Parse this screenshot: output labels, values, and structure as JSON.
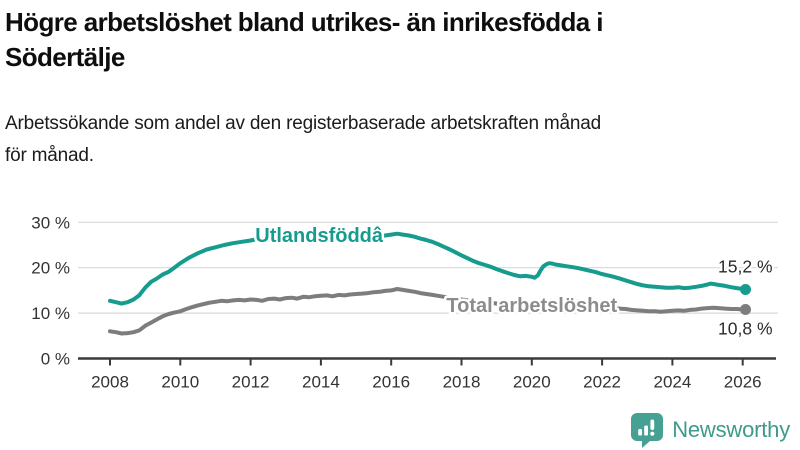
{
  "title": "Högre arbetslöshet bland utrikes- än inrikesfödda i Södertälje",
  "title_lines": [
    "Högre arbetslöshet bland utrikes- än inrikesfödda i",
    "Södertälje"
  ],
  "subtitle": "Arbetssökande som andel av den registerbaserade arbetskraften månad för månad.",
  "subtitle_lines": [
    "Arbetssökande som andel av den registerbaserade arbetskraften månad",
    "för månad."
  ],
  "colors": {
    "foreign_born_line": "#169c8e",
    "total_line": "#7d7d7d",
    "total_label_text": "#8c8c8c",
    "grid": "#d9d9d9",
    "axis": "#3a3a3a",
    "tick_text": "#333333",
    "end_label_text": "#2b2b2b",
    "logo_fill": "#47a094",
    "logo_text": "#3d9a8c",
    "background": "#ffffff"
  },
  "footer": {
    "brand": "Newsworthy"
  },
  "chart_data": {
    "type": "line",
    "grid": "horizontal",
    "legend_position": "inline-labels",
    "x_axis": {
      "tick_years": [
        2008,
        2010,
        2012,
        2014,
        2016,
        2018,
        2020,
        2022,
        2024,
        2026
      ],
      "range": [
        2007.1,
        2026.9
      ]
    },
    "y_axis": {
      "ticks": [
        0,
        10,
        20,
        30
      ],
      "tick_labels": [
        "0 %",
        "10 %",
        "20 %",
        "30 %"
      ],
      "range": [
        0,
        31
      ],
      "unit": "%"
    },
    "series": [
      {
        "name": "Utlandsföddâ",
        "color": "#169c8e",
        "end_value": 15.2,
        "end_label": "15,2 %",
        "end_label_side": "above",
        "label_anchor": {
          "year": 2013.95,
          "value": 27.2
        },
        "points": [
          [
            2008.0,
            12.7
          ],
          [
            2008.17,
            12.4
          ],
          [
            2008.33,
            12.1
          ],
          [
            2008.5,
            12.4
          ],
          [
            2008.67,
            13.0
          ],
          [
            2008.83,
            13.9
          ],
          [
            2009.0,
            15.6
          ],
          [
            2009.17,
            16.9
          ],
          [
            2009.33,
            17.6
          ],
          [
            2009.5,
            18.5
          ],
          [
            2009.67,
            19.1
          ],
          [
            2009.83,
            20.0
          ],
          [
            2010.0,
            21.0
          ],
          [
            2010.25,
            22.2
          ],
          [
            2010.5,
            23.2
          ],
          [
            2010.75,
            24.0
          ],
          [
            2011.0,
            24.5
          ],
          [
            2011.25,
            25.0
          ],
          [
            2011.5,
            25.4
          ],
          [
            2011.75,
            25.7
          ],
          [
            2012.0,
            26.0
          ],
          [
            2012.25,
            26.4
          ],
          [
            2012.5,
            26.2
          ],
          [
            2012.75,
            26.0
          ],
          [
            2013.0,
            26.2
          ],
          [
            2013.25,
            26.4
          ],
          [
            2013.5,
            26.2
          ],
          [
            2013.75,
            26.0
          ],
          [
            2014.0,
            26.2
          ],
          [
            2014.25,
            26.4
          ],
          [
            2014.5,
            26.3
          ],
          [
            2014.75,
            26.5
          ],
          [
            2015.0,
            26.7
          ],
          [
            2015.25,
            26.9
          ],
          [
            2015.5,
            27.1
          ],
          [
            2015.75,
            27.0
          ],
          [
            2016.0,
            27.3
          ],
          [
            2016.17,
            27.5
          ],
          [
            2016.33,
            27.3
          ],
          [
            2016.5,
            27.1
          ],
          [
            2016.67,
            26.8
          ],
          [
            2016.83,
            26.4
          ],
          [
            2017.0,
            26.1
          ],
          [
            2017.17,
            25.7
          ],
          [
            2017.33,
            25.2
          ],
          [
            2017.5,
            24.6
          ],
          [
            2017.67,
            24.0
          ],
          [
            2017.83,
            23.4
          ],
          [
            2018.0,
            22.7
          ],
          [
            2018.17,
            22.1
          ],
          [
            2018.33,
            21.5
          ],
          [
            2018.5,
            21.0
          ],
          [
            2018.67,
            20.6
          ],
          [
            2018.83,
            20.2
          ],
          [
            2019.0,
            19.7
          ],
          [
            2019.17,
            19.2
          ],
          [
            2019.33,
            18.8
          ],
          [
            2019.5,
            18.4
          ],
          [
            2019.67,
            18.1
          ],
          [
            2019.83,
            18.2
          ],
          [
            2020.0,
            18.0
          ],
          [
            2020.08,
            17.8
          ],
          [
            2020.17,
            18.3
          ],
          [
            2020.25,
            19.4
          ],
          [
            2020.33,
            20.3
          ],
          [
            2020.42,
            20.8
          ],
          [
            2020.5,
            21.0
          ],
          [
            2020.58,
            20.9
          ],
          [
            2020.67,
            20.7
          ],
          [
            2020.83,
            20.5
          ],
          [
            2021.0,
            20.3
          ],
          [
            2021.17,
            20.1
          ],
          [
            2021.33,
            19.9
          ],
          [
            2021.5,
            19.6
          ],
          [
            2021.67,
            19.3
          ],
          [
            2021.83,
            19.0
          ],
          [
            2022.0,
            18.6
          ],
          [
            2022.17,
            18.3
          ],
          [
            2022.33,
            18.0
          ],
          [
            2022.5,
            17.6
          ],
          [
            2022.67,
            17.2
          ],
          [
            2022.83,
            16.8
          ],
          [
            2023.0,
            16.4
          ],
          [
            2023.17,
            16.1
          ],
          [
            2023.33,
            15.9
          ],
          [
            2023.5,
            15.8
          ],
          [
            2023.67,
            15.7
          ],
          [
            2023.83,
            15.6
          ],
          [
            2024.0,
            15.6
          ],
          [
            2024.17,
            15.7
          ],
          [
            2024.33,
            15.5
          ],
          [
            2024.5,
            15.6
          ],
          [
            2024.67,
            15.8
          ],
          [
            2024.83,
            16.0
          ],
          [
            2025.0,
            16.3
          ],
          [
            2025.08,
            16.5
          ],
          [
            2025.17,
            16.4
          ],
          [
            2025.33,
            16.2
          ],
          [
            2025.5,
            16.0
          ],
          [
            2025.67,
            15.7
          ],
          [
            2025.83,
            15.5
          ],
          [
            2026.0,
            15.3
          ],
          [
            2026.08,
            15.2
          ]
        ]
      },
      {
        "name": "Total arbetslöshet",
        "color": "#7d7d7d",
        "label_color": "#8c8c8c",
        "end_value": 10.8,
        "end_label": "10,8 %",
        "end_label_side": "below",
        "label_anchor": {
          "year": 2020.0,
          "value": 11.8
        },
        "points": [
          [
            2008.0,
            6.0
          ],
          [
            2008.17,
            5.8
          ],
          [
            2008.33,
            5.5
          ],
          [
            2008.5,
            5.6
          ],
          [
            2008.67,
            5.8
          ],
          [
            2008.83,
            6.2
          ],
          [
            2009.0,
            7.2
          ],
          [
            2009.17,
            7.9
          ],
          [
            2009.33,
            8.6
          ],
          [
            2009.5,
            9.3
          ],
          [
            2009.67,
            9.8
          ],
          [
            2009.83,
            10.1
          ],
          [
            2010.0,
            10.4
          ],
          [
            2010.17,
            10.9
          ],
          [
            2010.33,
            11.3
          ],
          [
            2010.5,
            11.7
          ],
          [
            2010.67,
            12.0
          ],
          [
            2010.83,
            12.3
          ],
          [
            2011.0,
            12.5
          ],
          [
            2011.17,
            12.7
          ],
          [
            2011.33,
            12.6
          ],
          [
            2011.5,
            12.8
          ],
          [
            2011.67,
            12.9
          ],
          [
            2011.83,
            12.8
          ],
          [
            2012.0,
            13.0
          ],
          [
            2012.17,
            12.9
          ],
          [
            2012.33,
            12.7
          ],
          [
            2012.5,
            13.1
          ],
          [
            2012.67,
            13.2
          ],
          [
            2012.83,
            13.0
          ],
          [
            2013.0,
            13.3
          ],
          [
            2013.17,
            13.4
          ],
          [
            2013.33,
            13.2
          ],
          [
            2013.5,
            13.6
          ],
          [
            2013.67,
            13.5
          ],
          [
            2013.83,
            13.7
          ],
          [
            2014.0,
            13.8
          ],
          [
            2014.17,
            13.9
          ],
          [
            2014.33,
            13.7
          ],
          [
            2014.5,
            14.0
          ],
          [
            2014.67,
            13.9
          ],
          [
            2014.83,
            14.1
          ],
          [
            2015.0,
            14.2
          ],
          [
            2015.17,
            14.3
          ],
          [
            2015.33,
            14.4
          ],
          [
            2015.5,
            14.6
          ],
          [
            2015.67,
            14.7
          ],
          [
            2015.83,
            14.9
          ],
          [
            2016.0,
            15.0
          ],
          [
            2016.17,
            15.3
          ],
          [
            2016.33,
            15.1
          ],
          [
            2016.5,
            14.9
          ],
          [
            2016.67,
            14.7
          ],
          [
            2016.83,
            14.4
          ],
          [
            2017.0,
            14.2
          ],
          [
            2017.17,
            14.0
          ],
          [
            2017.33,
            13.8
          ],
          [
            2017.5,
            13.6
          ],
          [
            2017.67,
            13.4
          ],
          [
            2017.83,
            13.2
          ],
          [
            2018.0,
            13.0
          ],
          [
            2018.17,
            12.8
          ],
          [
            2018.33,
            12.6
          ],
          [
            2018.5,
            12.5
          ],
          [
            2018.67,
            12.4
          ],
          [
            2018.83,
            12.3
          ],
          [
            2019.0,
            12.1
          ],
          [
            2019.17,
            12.0
          ],
          [
            2019.33,
            11.9
          ],
          [
            2019.5,
            11.8
          ],
          [
            2019.67,
            11.8
          ],
          [
            2019.83,
            11.7
          ],
          [
            2020.0,
            11.7
          ],
          [
            2020.17,
            11.9
          ],
          [
            2020.33,
            12.3
          ],
          [
            2020.5,
            12.5
          ],
          [
            2020.67,
            12.4
          ],
          [
            2020.83,
            12.3
          ],
          [
            2021.0,
            12.2
          ],
          [
            2021.17,
            12.1
          ],
          [
            2021.33,
            11.9
          ],
          [
            2021.5,
            11.8
          ],
          [
            2021.67,
            11.7
          ],
          [
            2021.83,
            11.5
          ],
          [
            2022.0,
            11.4
          ],
          [
            2022.17,
            11.2
          ],
          [
            2022.33,
            11.1
          ],
          [
            2022.5,
            11.0
          ],
          [
            2022.67,
            10.9
          ],
          [
            2022.83,
            10.7
          ],
          [
            2023.0,
            10.6
          ],
          [
            2023.17,
            10.5
          ],
          [
            2023.33,
            10.4
          ],
          [
            2023.5,
            10.4
          ],
          [
            2023.67,
            10.3
          ],
          [
            2023.83,
            10.4
          ],
          [
            2024.0,
            10.5
          ],
          [
            2024.17,
            10.6
          ],
          [
            2024.33,
            10.5
          ],
          [
            2024.5,
            10.7
          ],
          [
            2024.67,
            10.8
          ],
          [
            2024.83,
            11.0
          ],
          [
            2025.0,
            11.1
          ],
          [
            2025.17,
            11.2
          ],
          [
            2025.33,
            11.1
          ],
          [
            2025.5,
            11.0
          ],
          [
            2025.67,
            10.9
          ],
          [
            2025.83,
            10.9
          ],
          [
            2026.0,
            10.8
          ],
          [
            2026.08,
            10.8
          ]
        ]
      }
    ]
  }
}
